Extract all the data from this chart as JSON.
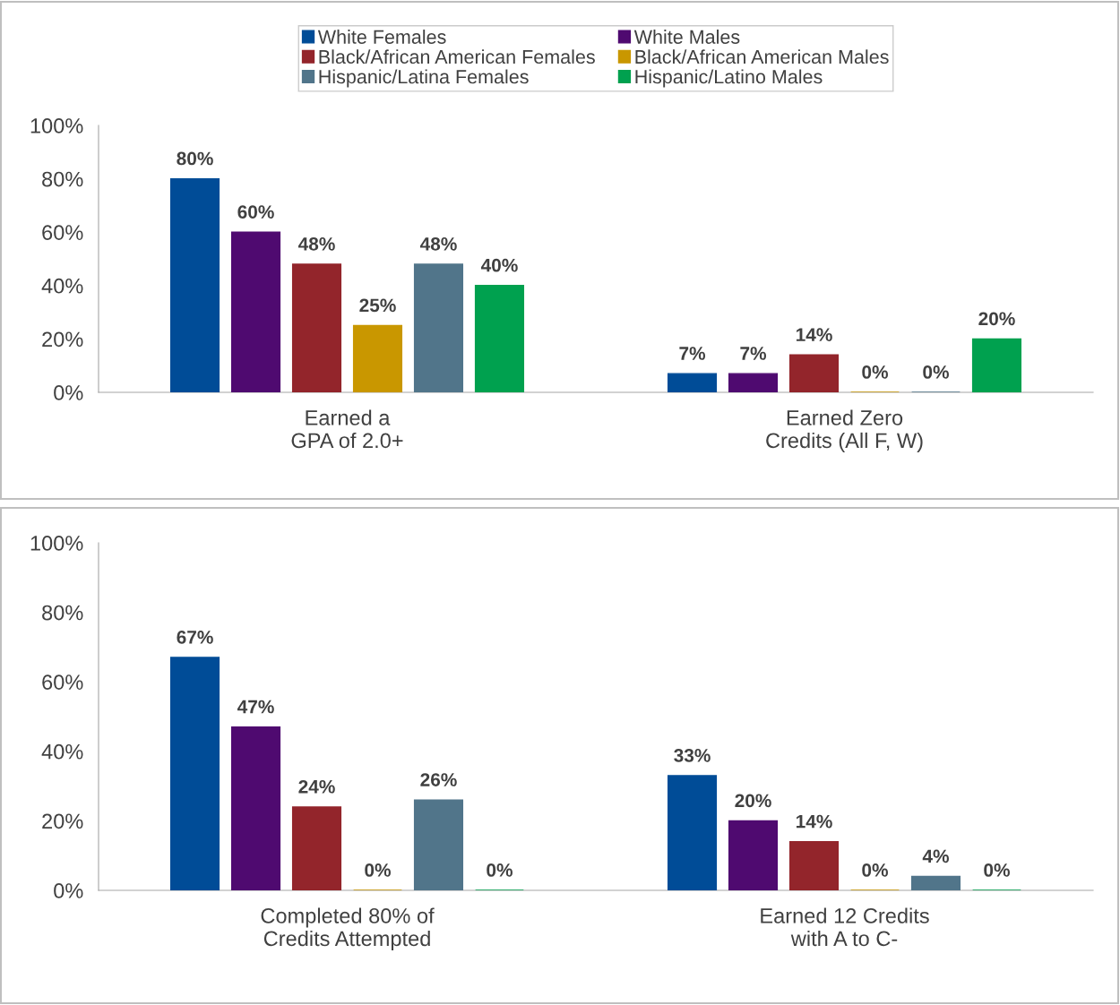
{
  "chart_data": [
    {
      "type": "bar",
      "categories": [
        "Earned a\nGPA of 2.0+",
        "Earned Zero\nCredits (All F, W)"
      ],
      "ylim": [
        0,
        100
      ],
      "yticks": [
        {
          "value": 0,
          "label": "0%"
        },
        {
          "value": 20,
          "label": "20%"
        },
        {
          "value": 40,
          "label": "40%"
        },
        {
          "value": 60,
          "label": "60%"
        },
        {
          "value": 80,
          "label": "80%"
        },
        {
          "value": 100,
          "label": "100%"
        }
      ],
      "grid": false,
      "legend": "top",
      "series": [
        {
          "name": "White Females",
          "color": "#004c97",
          "values": [
            80,
            7
          ],
          "value_labels": [
            "80%",
            "7%"
          ]
        },
        {
          "name": "White Males",
          "color": "#4f0a70",
          "values": [
            60,
            7
          ],
          "value_labels": [
            "60%",
            "7%"
          ]
        },
        {
          "name": "Black/African American Females",
          "color": "#93252b",
          "values": [
            48,
            14
          ],
          "value_labels": [
            "48%",
            "14%"
          ]
        },
        {
          "name": "Black/African American Males",
          "color": "#c99700",
          "values": [
            25,
            0
          ],
          "value_labels": [
            "25%",
            "0%"
          ]
        },
        {
          "name": "Hispanic/Latina Females",
          "color": "#51758a",
          "values": [
            48,
            0
          ],
          "value_labels": [
            "48%",
            "0%"
          ]
        },
        {
          "name": "Hispanic/Latino Males",
          "color": "#00a14f",
          "values": [
            40,
            20
          ],
          "value_labels": [
            "40%",
            "20%"
          ]
        }
      ]
    },
    {
      "type": "bar",
      "categories": [
        "Completed 80% of\nCredits Attempted",
        "Earned 12 Credits\nwith A to C-"
      ],
      "ylim": [
        0,
        100
      ],
      "yticks": [
        {
          "value": 0,
          "label": "0%"
        },
        {
          "value": 20,
          "label": "20%"
        },
        {
          "value": 40,
          "label": "40%"
        },
        {
          "value": 60,
          "label": "60%"
        },
        {
          "value": 80,
          "label": "80%"
        },
        {
          "value": 100,
          "label": "100%"
        }
      ],
      "grid": false,
      "series": [
        {
          "color": "#004c97",
          "values": [
            67,
            33
          ],
          "value_labels": [
            "67%",
            "33%"
          ]
        },
        {
          "color": "#4f0a70",
          "values": [
            47,
            20
          ],
          "value_labels": [
            "47%",
            "20%"
          ]
        },
        {
          "color": "#93252b",
          "values": [
            24,
            14
          ],
          "value_labels": [
            "24%",
            "14%"
          ]
        },
        {
          "color": "#c99700",
          "values": [
            0,
            0
          ],
          "value_labels": [
            "0%",
            "0%"
          ]
        },
        {
          "color": "#51758a",
          "values": [
            26,
            4
          ],
          "value_labels": [
            "26%",
            "4%"
          ]
        },
        {
          "color": "#00a14f",
          "values": [
            0,
            0
          ],
          "value_labels": [
            "0%",
            "0%"
          ]
        }
      ]
    }
  ]
}
